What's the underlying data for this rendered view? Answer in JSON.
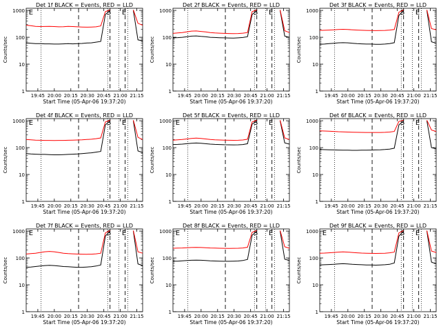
{
  "figure": {
    "background": "#ffffff",
    "event_color": "#000000",
    "lld_color": "#ff0000"
  },
  "chart_data": [
    {
      "type": "line",
      "title": "Det 1f BLACK = Events, RED = LLD",
      "xlabel": "Start Time (05-Apr-06 19:37:20)",
      "ylabel": "Counts/sec",
      "y_scale": "log",
      "ylim": [
        1,
        1200
      ],
      "y_tick_labels": [
        "1",
        "10",
        "100",
        "1000"
      ],
      "x_tick_labels": [
        "19:45",
        "20:00",
        "20:15",
        "20:30",
        "20:45",
        "21:00",
        "21:15"
      ],
      "markers": [
        "E",
        "S",
        "E"
      ],
      "series": [
        {
          "color": "#000000",
          "values": [
            62,
            60,
            58,
            58,
            57,
            57,
            56,
            56,
            57,
            58,
            57,
            58,
            59,
            61,
            62,
            66,
            70,
            700,
            1000,
            null,
            null,
            null,
            null,
            1000,
            80,
            74
          ]
        },
        {
          "color": "#ff0000",
          "values": [
            280,
            270,
            255,
            250,
            252,
            255,
            250,
            245,
            248,
            255,
            250,
            245,
            240,
            238,
            240,
            245,
            265,
            900,
            1050,
            null,
            null,
            null,
            null,
            1050,
            330,
            280
          ]
        }
      ]
    },
    {
      "type": "line",
      "title": "Det 2f BLACK = Events, RED = LLD",
      "xlabel": "Start Time (05-Apr-06 19:37:20)",
      "ylabel": "Counts/sec",
      "y_scale": "log",
      "ylim": [
        1,
        1200
      ],
      "y_tick_labels": [
        "1",
        "10",
        "100",
        "1000"
      ],
      "x_tick_labels": [
        "19:45",
        "20:00",
        "20:15",
        "20:30",
        "20:45",
        "21:00",
        "21:15"
      ],
      "markers": [
        "S",
        "E"
      ],
      "series": [
        {
          "color": "#000000",
          "values": [
            95,
            97,
            100,
            105,
            110,
            112,
            108,
            105,
            100,
            98,
            96,
            95,
            94,
            93,
            95,
            98,
            105,
            700,
            1000,
            null,
            null,
            null,
            null,
            1000,
            110,
            100
          ]
        },
        {
          "color": "#ff0000",
          "values": [
            140,
            145,
            150,
            160,
            170,
            172,
            165,
            158,
            150,
            145,
            142,
            140,
            138,
            137,
            138,
            142,
            150,
            900,
            1050,
            null,
            null,
            null,
            null,
            1050,
            175,
            150
          ]
        }
      ]
    },
    {
      "type": "line",
      "title": "Det 3f BLACK = Events, RED = LLD",
      "xlabel": "Start Time (05-Apr-06 19:37:20)",
      "ylabel": "Counts/sec",
      "y_scale": "log",
      "ylim": [
        1,
        1200
      ],
      "y_tick_labels": [
        "1",
        "10",
        "100",
        "1000"
      ],
      "x_tick_labels": [
        "19:45",
        "20:00",
        "20:15",
        "20:30",
        "20:45",
        "21:00",
        "21:15"
      ],
      "markers": [
        "S",
        "E"
      ],
      "series": [
        {
          "color": "#000000",
          "values": [
            55,
            56,
            58,
            60,
            62,
            63,
            62,
            60,
            58,
            57,
            56,
            56,
            55,
            55,
            56,
            58,
            63,
            650,
            1000,
            null,
            null,
            null,
            null,
            1000,
            68,
            60
          ]
        },
        {
          "color": "#ff0000",
          "values": [
            180,
            182,
            185,
            190,
            195,
            198,
            195,
            190,
            185,
            182,
            180,
            178,
            177,
            178,
            180,
            185,
            195,
            850,
            1050,
            null,
            null,
            null,
            null,
            1050,
            210,
            190
          ]
        }
      ]
    },
    {
      "type": "line",
      "title": "Det 4f BLACK = Events, RED = LLD",
      "xlabel": "Start Time (05-Apr-06 19:37:20)",
      "ylabel": "Counts/sec",
      "y_scale": "log",
      "ylim": [
        1,
        1200
      ],
      "y_tick_labels": [
        "1",
        "10",
        "100",
        "1000"
      ],
      "x_tick_labels": [
        "19:45",
        "20:00",
        "20:15",
        "20:30",
        "20:45",
        "21:00",
        "21:15"
      ],
      "markers": [
        "E",
        "S",
        "E"
      ],
      "series": [
        {
          "color": "#000000",
          "values": [
            60,
            58,
            57,
            56,
            56,
            55,
            54,
            54,
            55,
            56,
            57,
            58,
            60,
            62,
            64,
            68,
            72,
            700,
            1000,
            null,
            null,
            null,
            null,
            1000,
            75,
            65
          ]
        },
        {
          "color": "#ff0000",
          "values": [
            200,
            195,
            190,
            188,
            186,
            185,
            184,
            185,
            186,
            188,
            190,
            192,
            195,
            200,
            205,
            215,
            230,
            900,
            1050,
            null,
            null,
            null,
            null,
            1050,
            240,
            200
          ]
        }
      ]
    },
    {
      "type": "line",
      "title": "Det 5f BLACK = Events, RED = LLD",
      "xlabel": "Start Time (05-Apr-06 19:37:20)",
      "ylabel": "Counts/sec",
      "y_scale": "log",
      "ylim": [
        1,
        1200
      ],
      "y_tick_labels": [
        "1",
        "10",
        "100",
        "1000"
      ],
      "x_tick_labels": [
        "19:45",
        "20:00",
        "20:15",
        "20:30",
        "20:45",
        "21:00",
        "21:15"
      ],
      "markers": [
        "E",
        "S",
        "E"
      ],
      "series": [
        {
          "color": "#000000",
          "values": [
            130,
            132,
            135,
            140,
            145,
            148,
            145,
            140,
            135,
            132,
            130,
            128,
            127,
            126,
            127,
            130,
            140,
            750,
            1000,
            null,
            null,
            null,
            null,
            1000,
            150,
            135
          ]
        },
        {
          "color": "#ff0000",
          "values": [
            190,
            195,
            200,
            210,
            220,
            225,
            220,
            210,
            200,
            195,
            192,
            190,
            188,
            187,
            188,
            192,
            205,
            900,
            1050,
            null,
            null,
            null,
            null,
            1050,
            230,
            200
          ]
        }
      ]
    },
    {
      "type": "line",
      "title": "Det 6f BLACK = Events, RED = LLD",
      "xlabel": "Start Time (05-Apr-06 19:37:20)",
      "ylabel": "Counts/sec",
      "y_scale": "log",
      "ylim": [
        1,
        1200
      ],
      "y_tick_labels": [
        "1",
        "10",
        "100",
        "1000"
      ],
      "x_tick_labels": [
        "19:45",
        "20:00",
        "20:15",
        "20:30",
        "20:45",
        "21:00",
        "21:15"
      ],
      "markers": [
        "S",
        "E"
      ],
      "series": [
        {
          "color": "#000000",
          "values": [
            85,
            84,
            83,
            82,
            81,
            80,
            80,
            79,
            79,
            80,
            80,
            81,
            82,
            83,
            85,
            88,
            95,
            700,
            1000,
            null,
            null,
            null,
            null,
            1000,
            100,
            90
          ]
        },
        {
          "color": "#ff0000",
          "values": [
            420,
            415,
            410,
            400,
            390,
            385,
            380,
            375,
            370,
            368,
            366,
            365,
            365,
            366,
            370,
            380,
            400,
            950,
            1050,
            null,
            null,
            null,
            null,
            1050,
            450,
            400
          ]
        }
      ]
    },
    {
      "type": "line",
      "title": "Det 7f BLACK = Events, RED = LLD",
      "xlabel": "Start Time (05-Apr-06 19:37:20)",
      "ylabel": "Counts/sec",
      "y_scale": "log",
      "ylim": [
        1,
        1200
      ],
      "y_tick_labels": [
        "1",
        "10",
        "100",
        "1000"
      ],
      "x_tick_labels": [
        "19:45",
        "20:00",
        "20:15",
        "20:30",
        "20:45",
        "21:00",
        "21:15"
      ],
      "markers": [
        "E",
        "S",
        "E"
      ],
      "series": [
        {
          "color": "#000000",
          "values": [
            45,
            46,
            48,
            50,
            52,
            53,
            52,
            50,
            48,
            47,
            46,
            45,
            45,
            46,
            47,
            50,
            55,
            650,
            1000,
            null,
            null,
            null,
            null,
            1000,
            60,
            52
          ]
        },
        {
          "color": "#ff0000",
          "values": [
            140,
            145,
            150,
            160,
            170,
            175,
            170,
            160,
            150,
            145,
            142,
            140,
            138,
            137,
            138,
            142,
            150,
            850,
            1050,
            null,
            null,
            null,
            null,
            1050,
            170,
            150
          ]
        }
      ]
    },
    {
      "type": "line",
      "title": "Det 8f BLACK = Events, RED = LLD",
      "xlabel": "Start Time (05-Apr-06 19:37:20)",
      "ylabel": "Counts/sec",
      "y_scale": "log",
      "ylim": [
        1,
        1200
      ],
      "y_tick_labels": [
        "1",
        "10",
        "100",
        "1000"
      ],
      "x_tick_labels": [
        "19:45",
        "20:00",
        "20:15",
        "20:30",
        "20:45",
        "21:00",
        "21:15"
      ],
      "markers": [
        "E",
        "S",
        "E"
      ],
      "series": [
        {
          "color": "#000000",
          "values": [
            75,
            76,
            78,
            80,
            82,
            83,
            82,
            80,
            78,
            77,
            76,
            75,
            75,
            76,
            77,
            80,
            88,
            700,
            1000,
            null,
            null,
            null,
            null,
            1000,
            90,
            80
          ]
        },
        {
          "color": "#ff0000",
          "values": [
            230,
            232,
            235,
            240,
            245,
            248,
            245,
            240,
            235,
            232,
            230,
            228,
            227,
            228,
            230,
            235,
            250,
            900,
            1050,
            null,
            null,
            null,
            null,
            1050,
            260,
            230
          ]
        }
      ]
    },
    {
      "type": "line",
      "title": "Det 9f BLACK = Events, RED = LLD",
      "xlabel": "Start Time (05-Apr-06 19:37:20)",
      "ylabel": "Counts/sec",
      "y_scale": "log",
      "ylim": [
        1,
        1200
      ],
      "y_tick_labels": [
        "1",
        "10",
        "100",
        "1000"
      ],
      "x_tick_labels": [
        "19:45",
        "20:00",
        "20:15",
        "20:30",
        "20:45",
        "21:00",
        "21:15"
      ],
      "markers": [
        "E",
        "S",
        "E"
      ],
      "series": [
        {
          "color": "#000000",
          "values": [
            55,
            56,
            57,
            58,
            60,
            61,
            60,
            58,
            57,
            56,
            55,
            55,
            54,
            55,
            56,
            58,
            65,
            650,
            1000,
            null,
            null,
            null,
            null,
            1000,
            70,
            60
          ]
        },
        {
          "color": "#ff0000",
          "values": [
            150,
            152,
            155,
            160,
            165,
            168,
            165,
            160,
            155,
            152,
            150,
            148,
            147,
            148,
            150,
            155,
            165,
            850,
            1050,
            null,
            null,
            null,
            null,
            1050,
            180,
            160
          ]
        }
      ]
    }
  ]
}
